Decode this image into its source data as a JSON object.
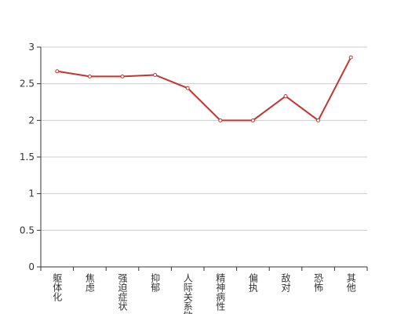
{
  "chart_data": {
    "type": "line",
    "categories": [
      "躯体化",
      "焦虑",
      "强迫症状",
      "抑郁",
      "人际关系敏感",
      "精神病性",
      "偏执",
      "敌对",
      "恐怖",
      "其他"
    ],
    "values": [
      2.67,
      2.6,
      2.6,
      2.62,
      2.44,
      2,
      2,
      2.33,
      2,
      2.86
    ],
    "color": "#c23531",
    "ylim": [
      0,
      3
    ],
    "yticks": [
      0,
      0.5,
      1,
      1.5,
      2,
      2.5,
      3
    ],
    "grid": true
  }
}
